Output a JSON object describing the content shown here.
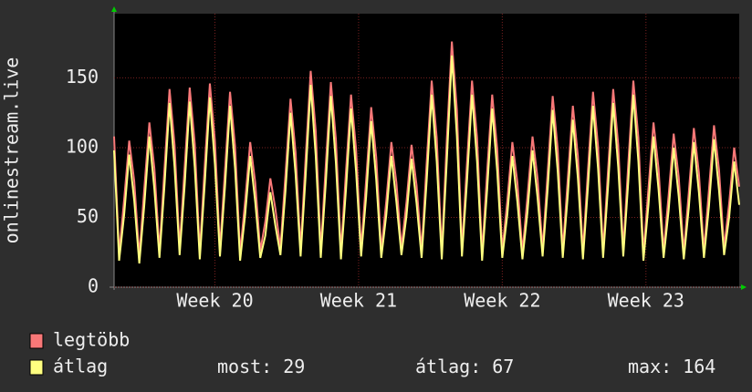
{
  "chart_data": {
    "type": "line",
    "ylabel": "onlinestream.live",
    "ylim": [
      0,
      196
    ],
    "yticks": [
      0,
      50,
      100,
      150
    ],
    "xlim": [
      0,
      124
    ],
    "xticks": [
      {
        "value": 20,
        "label": "Week 20"
      },
      {
        "value": 48.5,
        "label": "Week 21"
      },
      {
        "value": 77,
        "label": "Week 22"
      },
      {
        "value": 105.5,
        "label": "Week 23"
      }
    ],
    "grid": true,
    "series": [
      {
        "name": "legtöbb",
        "color": "#f87878",
        "values": [
          108,
          24,
          63,
          105,
          76,
          22,
          71,
          118,
          85,
          26,
          85,
          142,
          102,
          28,
          86,
          143,
          103,
          25,
          88,
          146,
          105,
          27,
          84,
          140,
          101,
          24,
          62,
          104,
          75,
          26,
          47,
          78,
          56,
          28,
          81,
          135,
          97,
          27,
          93,
          155,
          112,
          26,
          88,
          147,
          106,
          25,
          83,
          138,
          99,
          27,
          77,
          129,
          93,
          26,
          62,
          104,
          75,
          28,
          61,
          102,
          73,
          26,
          89,
          148,
          107,
          25,
          106,
          176,
          127,
          27,
          89,
          148,
          107,
          24,
          83,
          138,
          99,
          26,
          62,
          104,
          75,
          25,
          65,
          108,
          78,
          27,
          82,
          137,
          99,
          26,
          78,
          130,
          94,
          25,
          84,
          140,
          101,
          26,
          85,
          142,
          102,
          27,
          89,
          148,
          107,
          24,
          71,
          118,
          85,
          26,
          66,
          110,
          79,
          25,
          68,
          114,
          82,
          26,
          70,
          116,
          84,
          28,
          60,
          100,
          72
        ]
      },
      {
        "name": "átlag",
        "color": "#ffff80",
        "values": [
          98,
          19,
          52,
          95,
          62,
          17,
          59,
          108,
          70,
          21,
          73,
          132,
          86,
          23,
          73,
          133,
          86,
          20,
          75,
          136,
          88,
          22,
          72,
          130,
          85,
          19,
          52,
          94,
          61,
          21,
          37,
          68,
          44,
          23,
          69,
          125,
          81,
          22,
          80,
          145,
          94,
          21,
          75,
          137,
          89,
          20,
          70,
          128,
          83,
          22,
          65,
          119,
          77,
          21,
          52,
          94,
          61,
          23,
          51,
          92,
          60,
          21,
          76,
          138,
          90,
          20,
          91,
          166,
          108,
          22,
          76,
          138,
          90,
          19,
          70,
          128,
          83,
          21,
          52,
          94,
          61,
          20,
          54,
          98,
          64,
          22,
          70,
          127,
          83,
          21,
          66,
          120,
          78,
          20,
          72,
          130,
          85,
          21,
          73,
          132,
          86,
          22,
          76,
          138,
          90,
          19,
          59,
          108,
          70,
          21,
          55,
          100,
          65,
          20,
          57,
          104,
          68,
          21,
          58,
          106,
          69,
          23,
          50,
          90,
          59
        ]
      }
    ],
    "stats": [
      {
        "label": "most:",
        "value": 29
      },
      {
        "label": "átlag:",
        "value": 67
      },
      {
        "label": "max:",
        "value": 164
      }
    ]
  }
}
